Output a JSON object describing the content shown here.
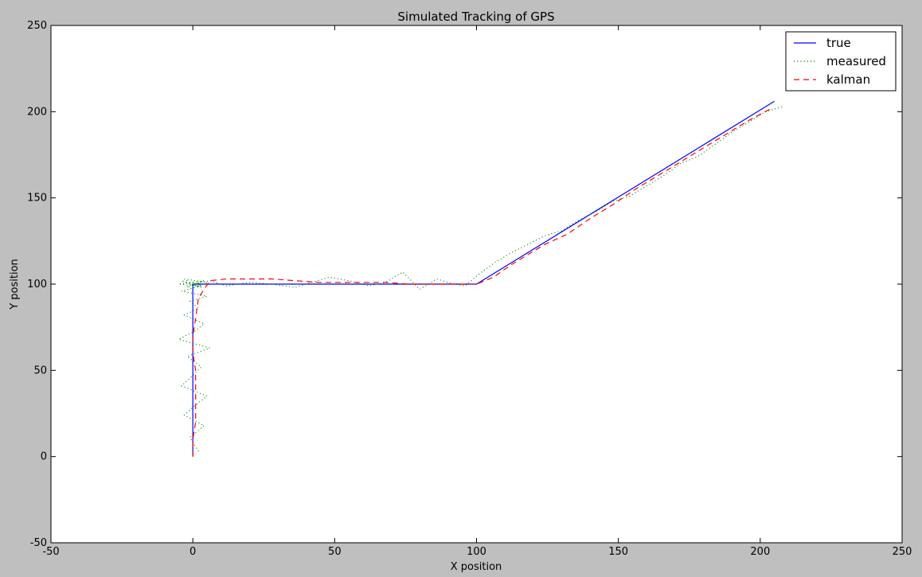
{
  "chart_data": {
    "type": "line",
    "title": "Simulated Tracking of GPS",
    "xlabel": "X position",
    "ylabel": "Y position",
    "xlim": [
      -50,
      250
    ],
    "ylim": [
      -50,
      250
    ],
    "xticks": [
      -50,
      0,
      50,
      100,
      150,
      200,
      250
    ],
    "yticks": [
      -50,
      0,
      50,
      100,
      150,
      200,
      250
    ],
    "grid": false,
    "legend_position": "top-right",
    "series": [
      {
        "name": "true",
        "color": "#0000ff",
        "style": "solid",
        "x": [
          0,
          0,
          100,
          205
        ],
        "y": [
          0,
          100,
          100,
          206
        ]
      },
      {
        "name": "measured",
        "color": "#008000",
        "style": "dotted",
        "x": [
          2,
          -1,
          4,
          -3,
          1,
          5,
          -4,
          0,
          3,
          -2,
          6,
          -5,
          1,
          4,
          -3,
          2,
          -1,
          5,
          -4,
          3,
          0,
          -2,
          4,
          -5,
          2,
          5,
          -3,
          1,
          -4,
          3,
          0,
          6,
          12,
          20,
          28,
          36,
          42,
          48,
          55,
          62,
          68,
          74,
          80,
          86,
          92,
          96,
          101,
          106,
          112,
          118,
          124,
          130,
          136,
          142,
          148,
          154,
          160,
          166,
          172,
          178,
          184,
          190,
          196,
          202,
          208
        ],
        "y": [
          3,
          11,
          18,
          24,
          30,
          35,
          41,
          47,
          52,
          58,
          63,
          68,
          73,
          77,
          82,
          86,
          90,
          93,
          96,
          99,
          101,
          98,
          102,
          100,
          99,
          101,
          103,
          99,
          102,
          98,
          100,
          102,
          99,
          101,
          100,
          98,
          101,
          104,
          102,
          99,
          101,
          107,
          97,
          103,
          100,
          99,
          106,
          112,
          118,
          123,
          128,
          131,
          137,
          142,
          148,
          151,
          157,
          163,
          170,
          174,
          181,
          188,
          194,
          200,
          203
        ]
      },
      {
        "name": "kalman",
        "color": "#ff0000",
        "style": "dashed",
        "x": [
          0,
          0,
          1,
          1,
          1,
          1,
          0,
          0,
          1,
          2,
          6,
          12,
          20,
          28,
          36,
          44,
          52,
          60,
          68,
          76,
          84,
          92,
          100,
          106,
          112,
          118,
          124,
          132,
          140,
          148,
          156,
          164,
          172,
          180,
          188,
          196,
          204
        ],
        "y": [
          0,
          10,
          20,
          30,
          40,
          50,
          60,
          70,
          80,
          92,
          102,
          103,
          103,
          103,
          102,
          101,
          101,
          101,
          101,
          100,
          100,
          100,
          100,
          104,
          111,
          117,
          123,
          129,
          138,
          146,
          155,
          163,
          171,
          179,
          187,
          195,
          202
        ]
      }
    ]
  }
}
